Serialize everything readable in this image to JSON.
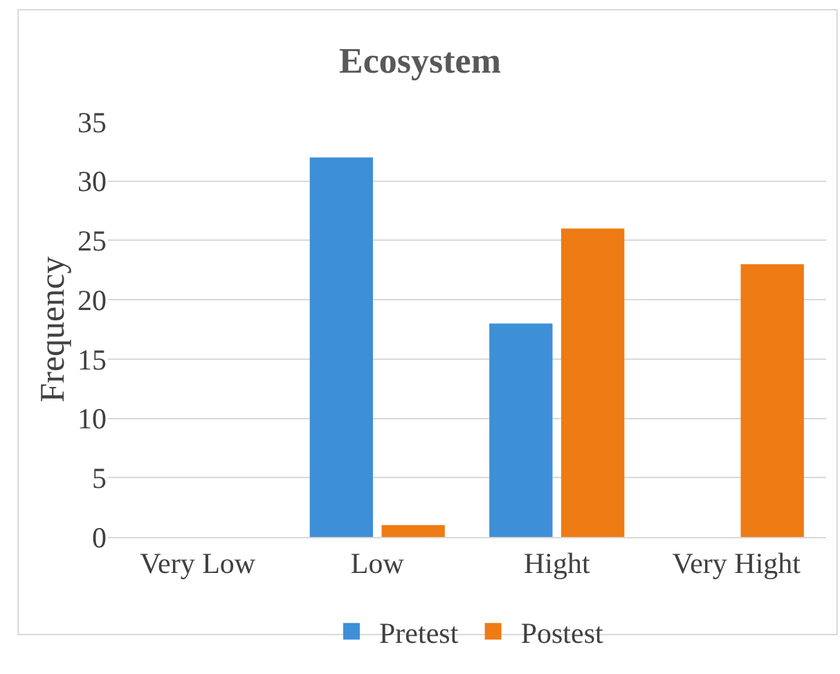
{
  "chart_data": {
    "type": "bar",
    "title": "Ecosystem",
    "ylabel": "Frequency",
    "categories": [
      "Very Low",
      "Low",
      "Hight",
      "Very Hight"
    ],
    "series": [
      {
        "name": "Pretest",
        "color": "#3d8fd8",
        "values": [
          0,
          32,
          18,
          0
        ]
      },
      {
        "name": "Postest",
        "color": "#ee7b14",
        "values": [
          0,
          1,
          26,
          23
        ]
      }
    ],
    "ylim": [
      0,
      35
    ],
    "yticks": [
      0,
      5,
      10,
      15,
      20,
      25,
      30,
      35
    ],
    "grid": "y",
    "legend": "bottom"
  }
}
